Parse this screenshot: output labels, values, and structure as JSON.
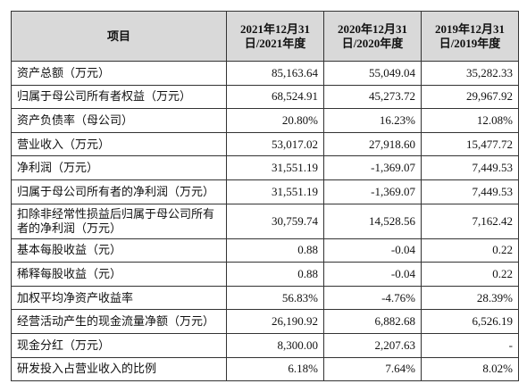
{
  "table": {
    "header": [
      "项目",
      "2021年12月31日/2021年度",
      "2020年12月31日/2020年度",
      "2019年12月31日/2019年度"
    ],
    "rows": [
      [
        "资产总额（万元）",
        "85,163.64",
        "55,049.04",
        "35,282.33"
      ],
      [
        "归属于母公司所有者权益（万元）",
        "68,524.91",
        "45,273.72",
        "29,967.92"
      ],
      [
        "资产负债率（母公司）",
        "20.80%",
        "16.23%",
        "12.08%"
      ],
      [
        "营业收入（万元）",
        "53,017.02",
        "27,918.60",
        "15,477.72"
      ],
      [
        "净利润（万元）",
        "31,551.19",
        "-1,369.07",
        "7,449.53"
      ],
      [
        "归属于母公司所有者的净利润（万元）",
        "31,551.19",
        "-1,369.07",
        "7,449.53"
      ],
      [
        "扣除非经常性损益后归属于母公司所有者的净利润（万元）",
        "30,759.74",
        "14,528.56",
        "7,162.42"
      ],
      [
        "基本每股收益（元）",
        "0.88",
        "-0.04",
        "0.22"
      ],
      [
        "稀释每股收益（元）",
        "0.88",
        "-0.04",
        "0.22"
      ],
      [
        "加权平均净资产收益率",
        "56.83%",
        "-4.76%",
        "28.39%"
      ],
      [
        "经营活动产生的现金流量净额（万元）",
        "26,190.92",
        "6,882.68",
        "6,526.19"
      ],
      [
        "现金分红（万元）",
        "8,300.00",
        "2,207.63",
        "-"
      ],
      [
        "研发投入占营业收入的比例",
        "6.18%",
        "7.64%",
        "8.02%"
      ]
    ]
  }
}
